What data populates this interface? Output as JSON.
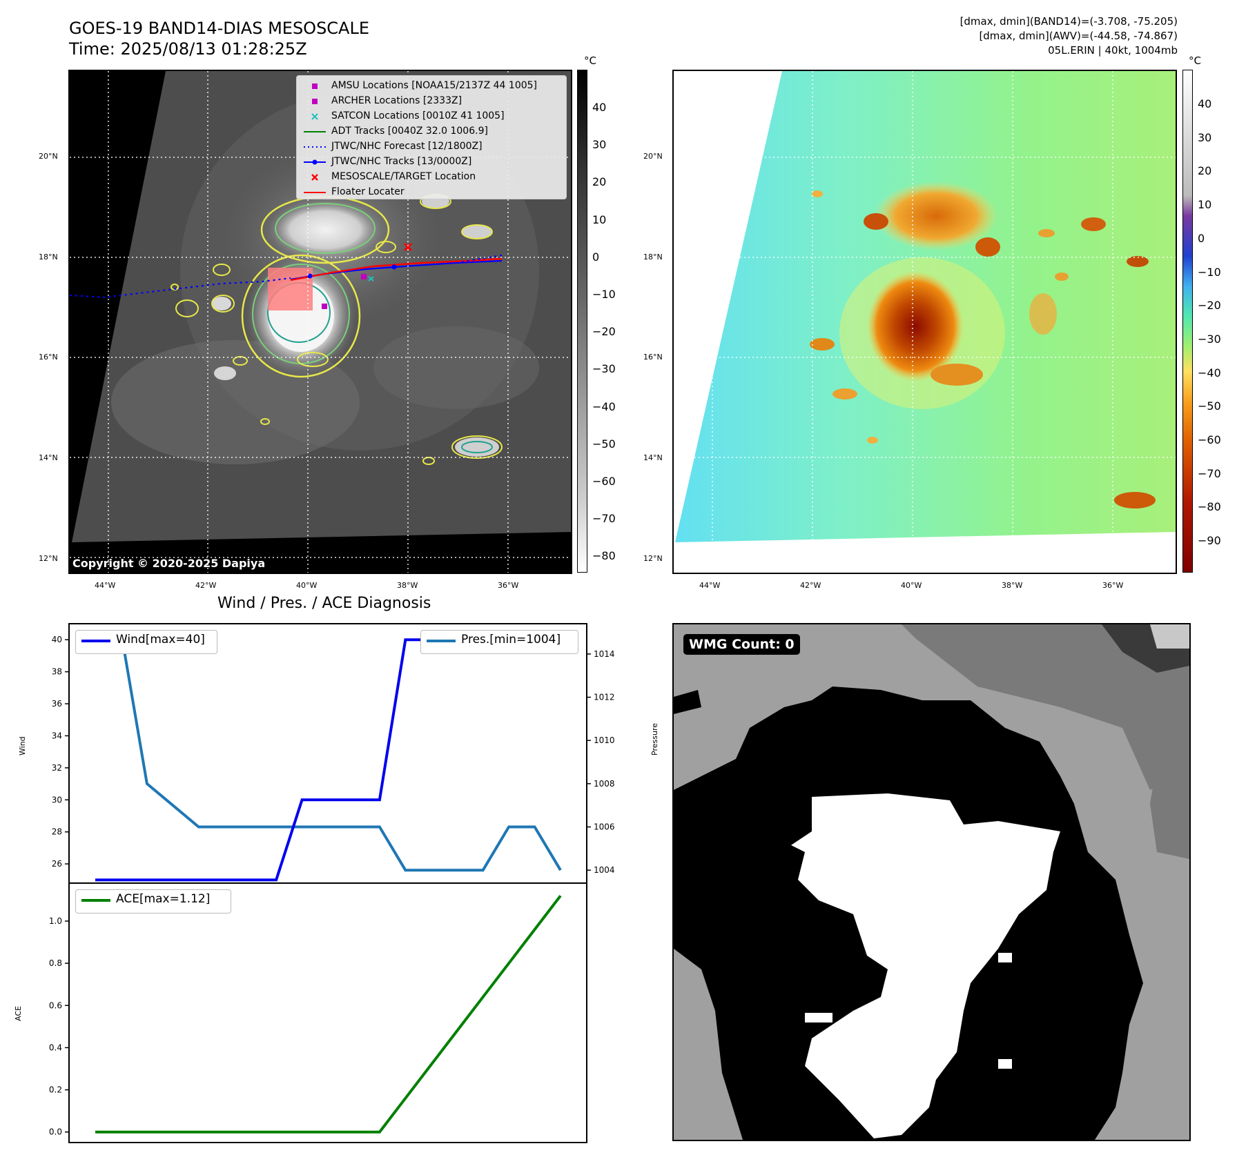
{
  "header": {
    "title_line1": "GOES-19 BAND14-DIAS MESOSCALE",
    "title_line2": "Time: 2025/08/13 01:28:25Z",
    "info_line1": "[dmax, dmin](BAND14)=(-3.708, -75.205)",
    "info_line2": "[dmax, dmin](AWV)=(-44.58, -74.867)",
    "info_line3": "05L.ERIN | 40kt, 1004mb"
  },
  "map": {
    "lat_labels": [
      "20°N",
      "18°N",
      "16°N",
      "14°N",
      "12°N"
    ],
    "lon_labels": [
      "44°W",
      "42°W",
      "40°W",
      "38°W",
      "36°W"
    ],
    "copyright": "Copyright © 2020-2025 Dapiya",
    "colorbar_unit": "°C",
    "colorbar_left_ticks": [
      "40",
      "30",
      "20",
      "10",
      "0",
      "−10",
      "−20",
      "−30",
      "−40",
      "−50",
      "−60",
      "−70",
      "−80"
    ],
    "colorbar_right_ticks": [
      "40",
      "30",
      "20",
      "10",
      "0",
      "−10",
      "−20",
      "−30",
      "−40",
      "−50",
      "−60",
      "−70",
      "−80",
      "−90"
    ],
    "legend": [
      {
        "label": "AMSU Locations [NOAA15/2137Z 44 1005]",
        "color": "#c000c0",
        "icon": "square-marker"
      },
      {
        "label": "ARCHER Locations [2333Z]",
        "color": "#c000c0",
        "icon": "square-marker"
      },
      {
        "label": "SATCON Locations [0010Z 41 1005]",
        "color": "#20c0c0",
        "icon": "x-marker"
      },
      {
        "label": "ADT Tracks [0040Z 32.0 1006.9]",
        "color": "#008000",
        "icon": "solid-line"
      },
      {
        "label": "JTWC/NHC Forecast [12/1800Z]",
        "color": "#0000ff",
        "icon": "dotted-line"
      },
      {
        "label": "JTWC/NHC Tracks [13/0000Z]",
        "color": "#0000ff",
        "icon": "line-dot"
      },
      {
        "label": "MESOSCALE/TARGET Location",
        "color": "#ff0000",
        "icon": "x-marker"
      },
      {
        "label": "Floater Locater",
        "color": "#ff0000",
        "icon": "solid-line"
      }
    ]
  },
  "diagnosis": {
    "title": "Wind / Pres. / ACE Diagnosis",
    "wind_axis_label": "Wind",
    "pressure_axis_label": "Pressure",
    "ace_axis_label": "ACE",
    "wind_legend": "Wind[max=40]",
    "pres_legend": "Pres.[min=1004]",
    "ace_legend": "ACE[max=1.12]"
  },
  "wmg": {
    "badge": "WMG Count: 0"
  },
  "chart_data": [
    {
      "type": "line",
      "title": "Wind / Pres. / ACE Diagnosis",
      "ylabel": "Wind",
      "y2label": "Pressure",
      "x": [
        0,
        1,
        2,
        3,
        4,
        5,
        6,
        7,
        8,
        9,
        10,
        11,
        12,
        13,
        14,
        15,
        16,
        17,
        18
      ],
      "series": [
        {
          "name": "Wind[max=40]",
          "color": "#0000ee",
          "axis": "left",
          "values": [
            25,
            25,
            25,
            25,
            25,
            25,
            25,
            25,
            30,
            30,
            30,
            30,
            40,
            40,
            40,
            40,
            40,
            40,
            40
          ]
        },
        {
          "name": "Pres.[min=1004]",
          "color": "#1f77b4",
          "axis": "right",
          "values": [
            1015,
            1015,
            1008,
            1007,
            1006,
            1006,
            1006,
            1006,
            1006,
            1006,
            1006,
            1006,
            1004,
            1004,
            1004,
            1004,
            1006,
            1006,
            1004
          ]
        }
      ],
      "ylim": [
        24.8,
        41
      ],
      "y2lim": [
        1003.4,
        1015.4
      ],
      "yticks": [
        26,
        28,
        30,
        32,
        34,
        36,
        38,
        40
      ],
      "y2ticks": [
        1004,
        1006,
        1008,
        1010,
        1012,
        1014
      ]
    },
    {
      "type": "line",
      "ylabel": "ACE",
      "x": [
        0,
        1,
        2,
        3,
        4,
        5,
        6,
        7,
        8,
        9,
        10,
        11,
        12,
        13,
        14,
        15,
        16,
        17,
        18
      ],
      "series": [
        {
          "name": "ACE[max=1.12]",
          "color": "#008000",
          "values": [
            0,
            0,
            0,
            0,
            0,
            0,
            0,
            0,
            0,
            0,
            0,
            0,
            0.16,
            0.32,
            0.48,
            0.64,
            0.8,
            0.96,
            1.12
          ]
        }
      ],
      "ylim": [
        -0.05,
        1.18
      ],
      "yticks": [
        0.0,
        0.2,
        0.4,
        0.6,
        0.8,
        1.0
      ]
    }
  ]
}
